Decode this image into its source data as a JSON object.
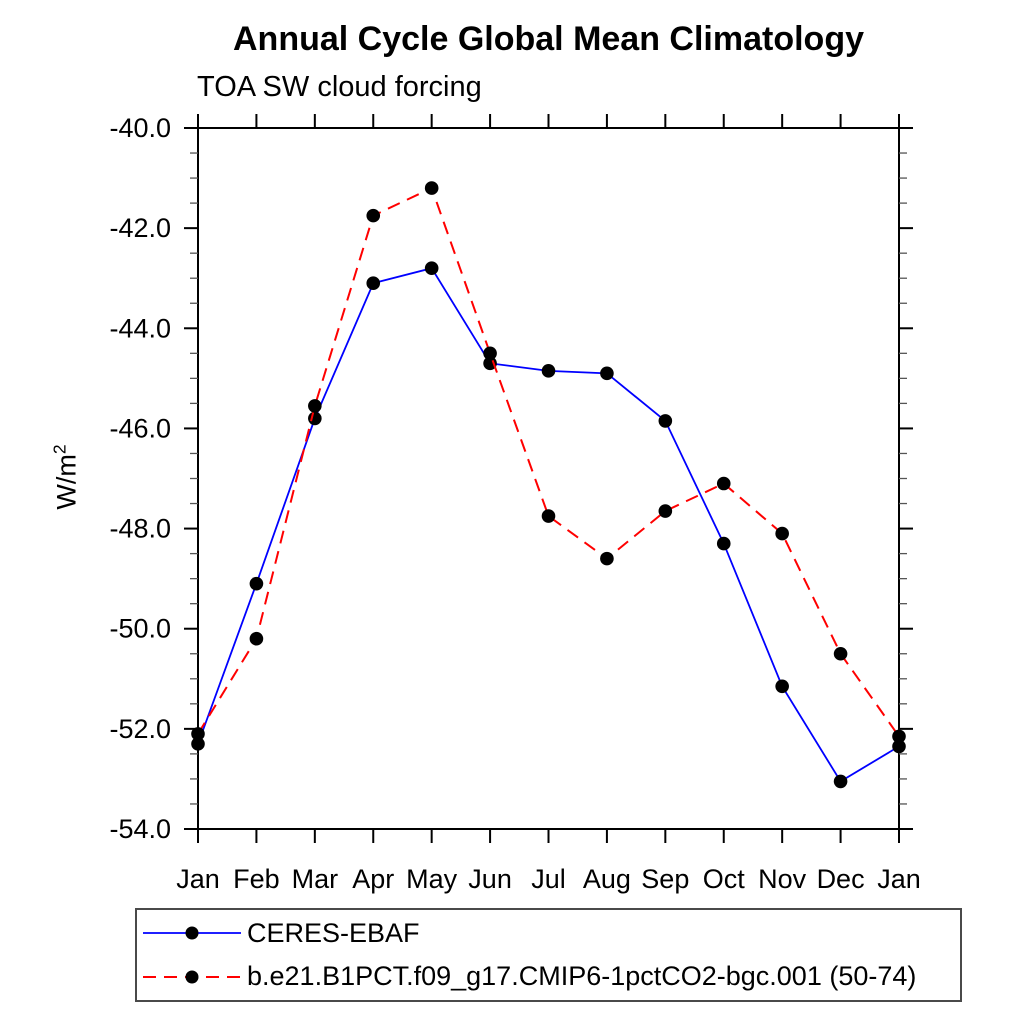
{
  "chart_data": {
    "type": "line",
    "title": "Annual Cycle Global Mean Climatology",
    "subtitle": "TOA SW cloud forcing",
    "ylabel_base": "W/m",
    "ylabel_sup": "2",
    "categories": [
      "Jan",
      "Feb",
      "Mar",
      "Apr",
      "May",
      "Jun",
      "Jul",
      "Aug",
      "Sep",
      "Oct",
      "Nov",
      "Dec",
      "Jan"
    ],
    "ylim": [
      -54.0,
      -40.0
    ],
    "ytick_major": 2.0,
    "ytick_minor": 0.5,
    "ytick_format_decimals": 1,
    "grid": false,
    "legend_position": "bottom-left",
    "axis_color": "#000000",
    "minor_tick_color": "#555555",
    "marker_color": "#000000",
    "series": [
      {
        "name": "CERES-EBAF",
        "color": "#0000ff",
        "style": "solid",
        "marker": "circle",
        "values": [
          -52.3,
          -49.1,
          -45.8,
          -43.1,
          -42.8,
          -44.7,
          -44.85,
          -44.9,
          -45.85,
          -48.3,
          -51.15,
          -53.05,
          -52.35
        ]
      },
      {
        "name": "b.e21.B1PCT.f09_g17.CMIP6-1pctCO2-bgc.001 (50-74)",
        "color": "#ff0000",
        "style": "dashed",
        "marker": "circle",
        "values": [
          -52.1,
          -50.2,
          -45.55,
          -41.75,
          -41.2,
          -44.5,
          -47.75,
          -48.6,
          -47.65,
          -47.1,
          -48.1,
          -50.5,
          -52.15
        ]
      }
    ]
  }
}
